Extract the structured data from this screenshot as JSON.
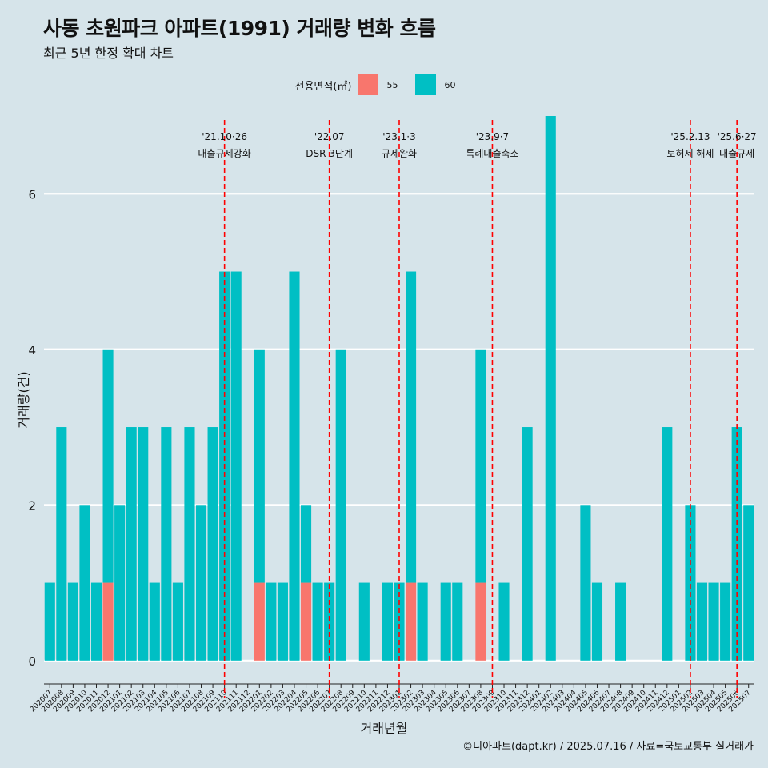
{
  "title": "사동 초원파크 아파트(1991) 거래량 변화 흐름",
  "subtitle": "최근 5년 한정 확대 차트",
  "legend": {
    "title": "전용면적(㎡)",
    "items": [
      {
        "label": "55",
        "color": "#f8766d"
      },
      {
        "label": "60",
        "color": "#00bfc4"
      }
    ]
  },
  "caption": "©디아파트(dapt.kr) / 2025.07.16 / 자료=국토교통부 실거래가",
  "chart_data": {
    "type": "bar",
    "stacked": true,
    "xlabel": "거래년월",
    "ylabel": "거래량(건)",
    "ylim": [
      -0.3,
      7.0
    ],
    "yticks": [
      0,
      2,
      4,
      6
    ],
    "grid": true,
    "legend_position": "top",
    "categories": [
      "202007",
      "202008",
      "202009",
      "202010",
      "202011",
      "202012",
      "202101",
      "202102",
      "202103",
      "202104",
      "202105",
      "202106",
      "202107",
      "202108",
      "202109",
      "202110",
      "202111",
      "202112",
      "202201",
      "202202",
      "202203",
      "202204",
      "202205",
      "202206",
      "202207",
      "202208",
      "202209",
      "202210",
      "202211",
      "202212",
      "202301",
      "202302",
      "202303",
      "202304",
      "202305",
      "202306",
      "202307",
      "202308",
      "202309",
      "202310",
      "202311",
      "202312",
      "202401",
      "202402",
      "202403",
      "202404",
      "202405",
      "202406",
      "202407",
      "202408",
      "202409",
      "202410",
      "202411",
      "202412",
      "202501",
      "202502",
      "202503",
      "202504",
      "202505",
      "202506",
      "202507"
    ],
    "series": [
      {
        "name": "55",
        "color": "#f8766d",
        "values": [
          0,
          0,
          0,
          0,
          0,
          1,
          0,
          0,
          0,
          0,
          0,
          0,
          0,
          0,
          0,
          0,
          0,
          0,
          1,
          0,
          0,
          0,
          1,
          0,
          0,
          0,
          0,
          0,
          0,
          0,
          0,
          1,
          0,
          0,
          0,
          0,
          0,
          1,
          0,
          0,
          0,
          0,
          0,
          0,
          0,
          0,
          0,
          0,
          0,
          0,
          0,
          0,
          0,
          0,
          0,
          0,
          0,
          0,
          0,
          0,
          0
        ]
      },
      {
        "name": "60",
        "color": "#00bfc4",
        "values": [
          1,
          3,
          1,
          2,
          1,
          3,
          2,
          3,
          3,
          1,
          3,
          1,
          3,
          2,
          3,
          5,
          5,
          0,
          3,
          1,
          1,
          5,
          1,
          1,
          1,
          4,
          0,
          1,
          0,
          1,
          1,
          4,
          1,
          0,
          1,
          1,
          0,
          3,
          0,
          1,
          0,
          3,
          0,
          7,
          0,
          0,
          2,
          1,
          0,
          1,
          0,
          0,
          0,
          3,
          0,
          2,
          1,
          1,
          1,
          3,
          2
        ]
      }
    ],
    "annotations": [
      {
        "x": "202110",
        "label1": "'21.10·26",
        "label2": "대출규제강화"
      },
      {
        "x": "202207",
        "label1": "'22.07",
        "label2": "DSR 3단계"
      },
      {
        "x": "202301",
        "label1": "'23.1·3",
        "label2": "규제완화"
      },
      {
        "x": "202309",
        "label1": "'23.9·7",
        "label2": "특례대출축소"
      },
      {
        "x": "202502",
        "label1": "'25.2.13",
        "label2": "토허제 해제"
      },
      {
        "x": "202506",
        "label1": "'25.6·27",
        "label2": "대출규제"
      }
    ],
    "annotation_color": "#ff0000"
  }
}
